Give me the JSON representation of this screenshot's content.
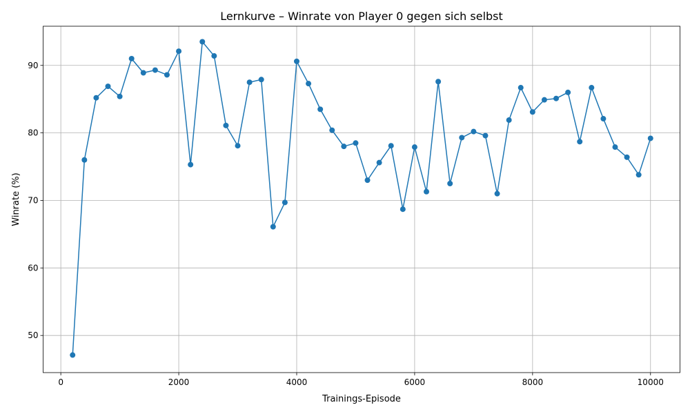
{
  "chart_data": {
    "type": "line",
    "title": "Lernkurve – Winrate von Player 0 gegen sich selbst",
    "xlabel": "Trainings-Episode",
    "ylabel": "Winrate (%)",
    "xlim": [
      -300,
      10500
    ],
    "ylim": [
      44.5,
      95.8
    ],
    "xticks": [
      0,
      2000,
      4000,
      6000,
      8000,
      10000
    ],
    "yticks": [
      50,
      60,
      70,
      80,
      90
    ],
    "grid": true,
    "series": [
      {
        "color": "#1f77b4",
        "x": [
          200,
          400,
          600,
          800,
          1000,
          1200,
          1400,
          1600,
          1800,
          2000,
          2200,
          2400,
          2600,
          2800,
          3000,
          3200,
          3400,
          3600,
          3800,
          4000,
          4200,
          4400,
          4600,
          4800,
          5000,
          5200,
          5400,
          5600,
          5800,
          6000,
          6200,
          6400,
          6600,
          6800,
          7000,
          7200,
          7400,
          7600,
          7800,
          8000,
          8200,
          8400,
          8600,
          8800,
          9000,
          9200,
          9400,
          9600,
          9800,
          10000
        ],
        "values": [
          47.1,
          76.0,
          85.2,
          86.9,
          85.4,
          91.0,
          88.9,
          89.3,
          88.6,
          92.1,
          75.3,
          93.5,
          91.4,
          81.1,
          78.1,
          87.5,
          87.9,
          66.1,
          69.7,
          90.6,
          87.3,
          83.5,
          80.4,
          78.0,
          78.5,
          73.0,
          75.6,
          78.1,
          68.7,
          77.9,
          71.3,
          87.6,
          72.5,
          79.3,
          80.2,
          79.6,
          71.0,
          81.9,
          86.7,
          83.1,
          84.9,
          85.1,
          86.0,
          78.7,
          86.7,
          82.1,
          77.9,
          76.4,
          73.8,
          79.2
        ]
      }
    ]
  }
}
